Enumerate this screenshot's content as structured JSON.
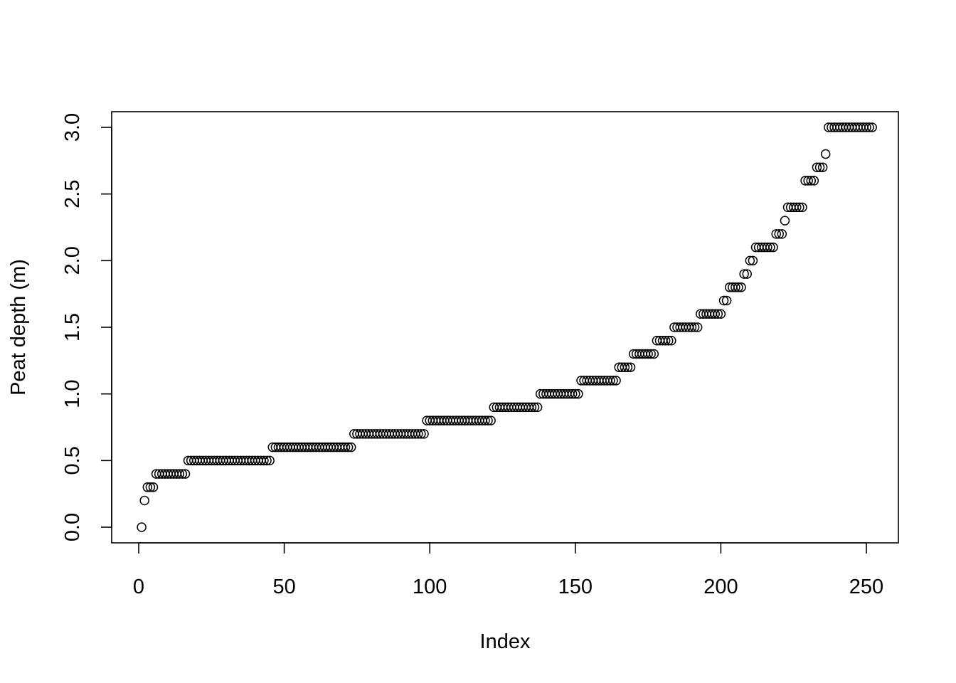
{
  "chart_data": {
    "type": "scatter",
    "title": "",
    "xlabel": "Index",
    "ylabel": "Peat depth (m)",
    "xlim": [
      0,
      251
    ],
    "ylim": [
      0,
      3.0
    ],
    "x_ticks": [
      0,
      50,
      100,
      150,
      200,
      250
    ],
    "x_tick_labels": [
      "0",
      "50",
      "100",
      "150",
      "200",
      "250"
    ],
    "y_ticks": [
      0,
      0.5,
      1.0,
      1.5,
      2.0,
      2.5,
      3.0
    ],
    "y_tick_labels": [
      "0.0",
      "0.5",
      "1.0",
      "1.5",
      "2.0",
      "2.5",
      "3.0"
    ],
    "grid": false,
    "marker": "open-circle",
    "values": [
      0,
      0.2,
      0.3,
      0.3,
      0.3,
      0.4,
      0.4,
      0.4,
      0.4,
      0.4,
      0.4,
      0.4,
      0.4,
      0.4,
      0.4,
      0.4,
      0.5,
      0.5,
      0.5,
      0.5,
      0.5,
      0.5,
      0.5,
      0.5,
      0.5,
      0.5,
      0.5,
      0.5,
      0.5,
      0.5,
      0.5,
      0.5,
      0.5,
      0.5,
      0.5,
      0.5,
      0.5,
      0.5,
      0.5,
      0.5,
      0.5,
      0.5,
      0.5,
      0.5,
      0.5,
      0.6,
      0.6,
      0.6,
      0.6,
      0.6,
      0.6,
      0.6,
      0.6,
      0.6,
      0.6,
      0.6,
      0.6,
      0.6,
      0.6,
      0.6,
      0.6,
      0.6,
      0.6,
      0.6,
      0.6,
      0.6,
      0.6,
      0.6,
      0.6,
      0.6,
      0.6,
      0.6,
      0.6,
      0.7,
      0.7,
      0.7,
      0.7,
      0.7,
      0.7,
      0.7,
      0.7,
      0.7,
      0.7,
      0.7,
      0.7,
      0.7,
      0.7,
      0.7,
      0.7,
      0.7,
      0.7,
      0.7,
      0.7,
      0.7,
      0.7,
      0.7,
      0.7,
      0.7,
      0.8,
      0.8,
      0.8,
      0.8,
      0.8,
      0.8,
      0.8,
      0.8,
      0.8,
      0.8,
      0.8,
      0.8,
      0.8,
      0.8,
      0.8,
      0.8,
      0.8,
      0.8,
      0.8,
      0.8,
      0.8,
      0.8,
      0.8,
      0.9,
      0.9,
      0.9,
      0.9,
      0.9,
      0.9,
      0.9,
      0.9,
      0.9,
      0.9,
      0.9,
      0.9,
      0.9,
      0.9,
      0.9,
      0.9,
      1.0,
      1.0,
      1.0,
      1.0,
      1.0,
      1.0,
      1.0,
      1.0,
      1.0,
      1.0,
      1.0,
      1.0,
      1.0,
      1.0,
      1.1,
      1.1,
      1.1,
      1.1,
      1.1,
      1.1,
      1.1,
      1.1,
      1.1,
      1.1,
      1.1,
      1.1,
      1.1,
      1.2,
      1.2,
      1.2,
      1.2,
      1.2,
      1.3,
      1.3,
      1.3,
      1.3,
      1.3,
      1.3,
      1.3,
      1.3,
      1.4,
      1.4,
      1.4,
      1.4,
      1.4,
      1.4,
      1.5,
      1.5,
      1.5,
      1.5,
      1.5,
      1.5,
      1.5,
      1.5,
      1.5,
      1.6,
      1.6,
      1.6,
      1.6,
      1.6,
      1.6,
      1.6,
      1.6,
      1.7,
      1.7,
      1.8,
      1.8,
      1.8,
      1.8,
      1.8,
      1.9,
      1.9,
      2.0,
      2.0,
      2.1,
      2.1,
      2.1,
      2.1,
      2.1,
      2.1,
      2.1,
      2.2,
      2.2,
      2.2,
      2.3,
      2.4,
      2.4,
      2.4,
      2.4,
      2.4,
      2.4,
      2.6,
      2.6,
      2.6,
      2.6,
      2.7,
      2.7,
      2.7,
      2.8,
      3.0,
      3.0,
      3.0,
      3.0,
      3.0,
      3.0,
      3.0,
      3.0,
      3.0,
      3.0,
      3.0,
      3.0,
      3.0,
      3.0,
      3.0,
      3.0
    ]
  }
}
